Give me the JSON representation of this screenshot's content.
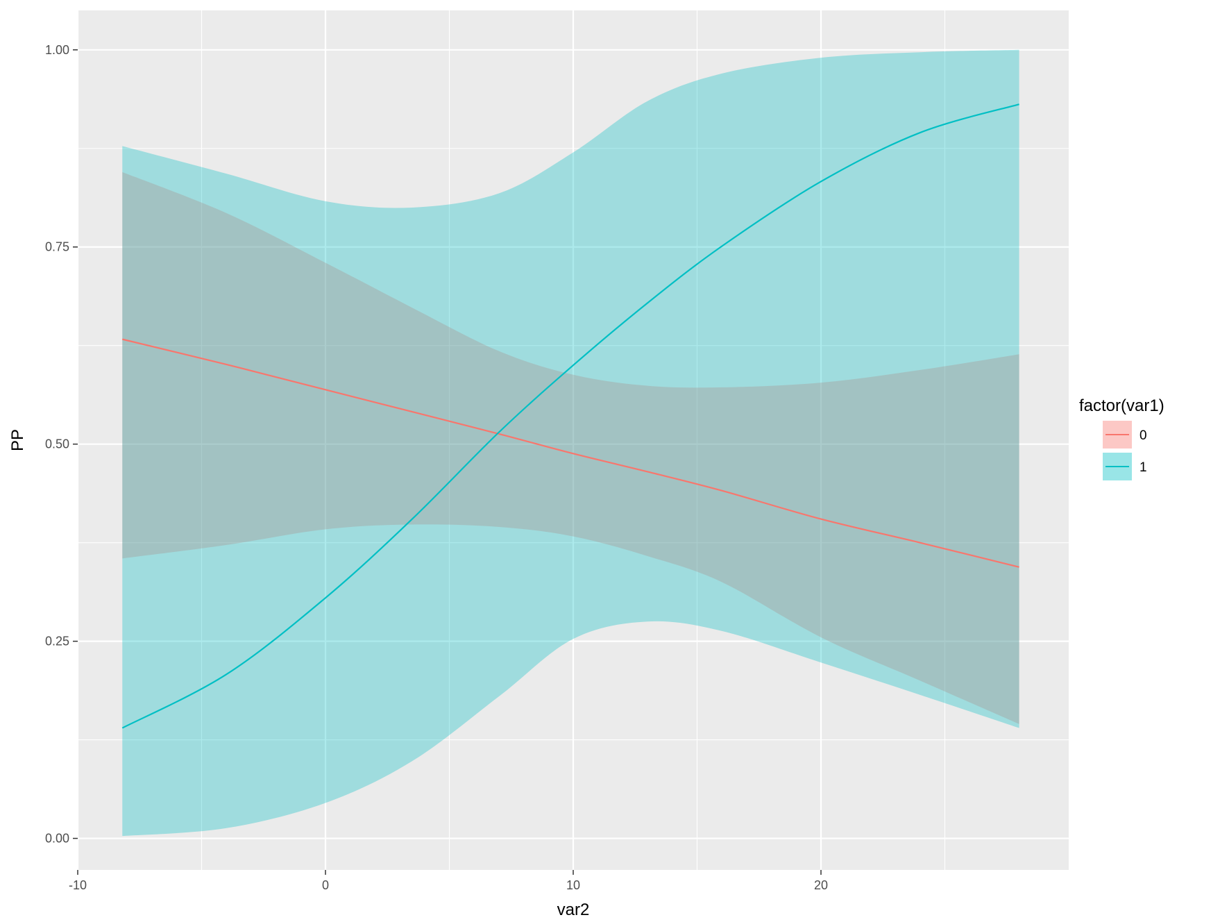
{
  "chart_data": {
    "type": "line",
    "title": "",
    "xlabel": "var2",
    "ylabel": "PP",
    "xlim": [
      -10,
      30
    ],
    "ylim": [
      -0.04,
      1.05
    ],
    "x_ticks": [
      -10,
      0,
      10,
      20
    ],
    "x_tick_labels": [
      "-10",
      "0",
      "10",
      "20"
    ],
    "x_minor_ticks": [
      -5,
      5,
      15,
      25
    ],
    "y_ticks": [
      0,
      0.25,
      0.5,
      0.75,
      1.0
    ],
    "y_tick_labels": [
      "0.00",
      "0.25",
      "0.50",
      "0.75",
      "1.00"
    ],
    "y_minor_ticks": [
      0.125,
      0.375,
      0.625,
      0.875
    ],
    "grid": true,
    "legend": {
      "title": "factor(var1)",
      "position": "right"
    },
    "colors": {
      "panel": "#ebebeb",
      "grid": "#ffffff",
      "series_0": "#F8766D",
      "series_1": "#00BFC4"
    },
    "x": [
      -8.2,
      -4,
      0,
      3.5,
      7,
      10,
      13,
      16,
      20,
      24,
      28
    ],
    "series": [
      {
        "name": "0",
        "color": "#F8766D",
        "values": [
          0.633,
          0.601,
          0.569,
          0.541,
          0.513,
          0.488,
          0.465,
          0.441,
          0.405,
          0.375,
          0.344
        ],
        "ribbon_lower": [
          0.355,
          0.372,
          0.392,
          0.398,
          0.395,
          0.383,
          0.358,
          0.325,
          0.255,
          0.2,
          0.145
        ],
        "ribbon_upper": [
          0.845,
          0.793,
          0.73,
          0.673,
          0.618,
          0.588,
          0.574,
          0.572,
          0.578,
          0.594,
          0.614
        ]
      },
      {
        "name": "1",
        "color": "#00BFC4",
        "values": [
          0.14,
          0.208,
          0.305,
          0.405,
          0.515,
          0.6,
          0.679,
          0.751,
          0.833,
          0.895,
          0.931
        ],
        "ribbon_lower": [
          0.003,
          0.013,
          0.045,
          0.098,
          0.18,
          0.253,
          0.275,
          0.263,
          0.223,
          0.182,
          0.14
        ],
        "ribbon_upper": [
          0.878,
          0.843,
          0.808,
          0.8,
          0.818,
          0.87,
          0.935,
          0.97,
          0.99,
          0.997,
          1.0
        ]
      }
    ]
  }
}
